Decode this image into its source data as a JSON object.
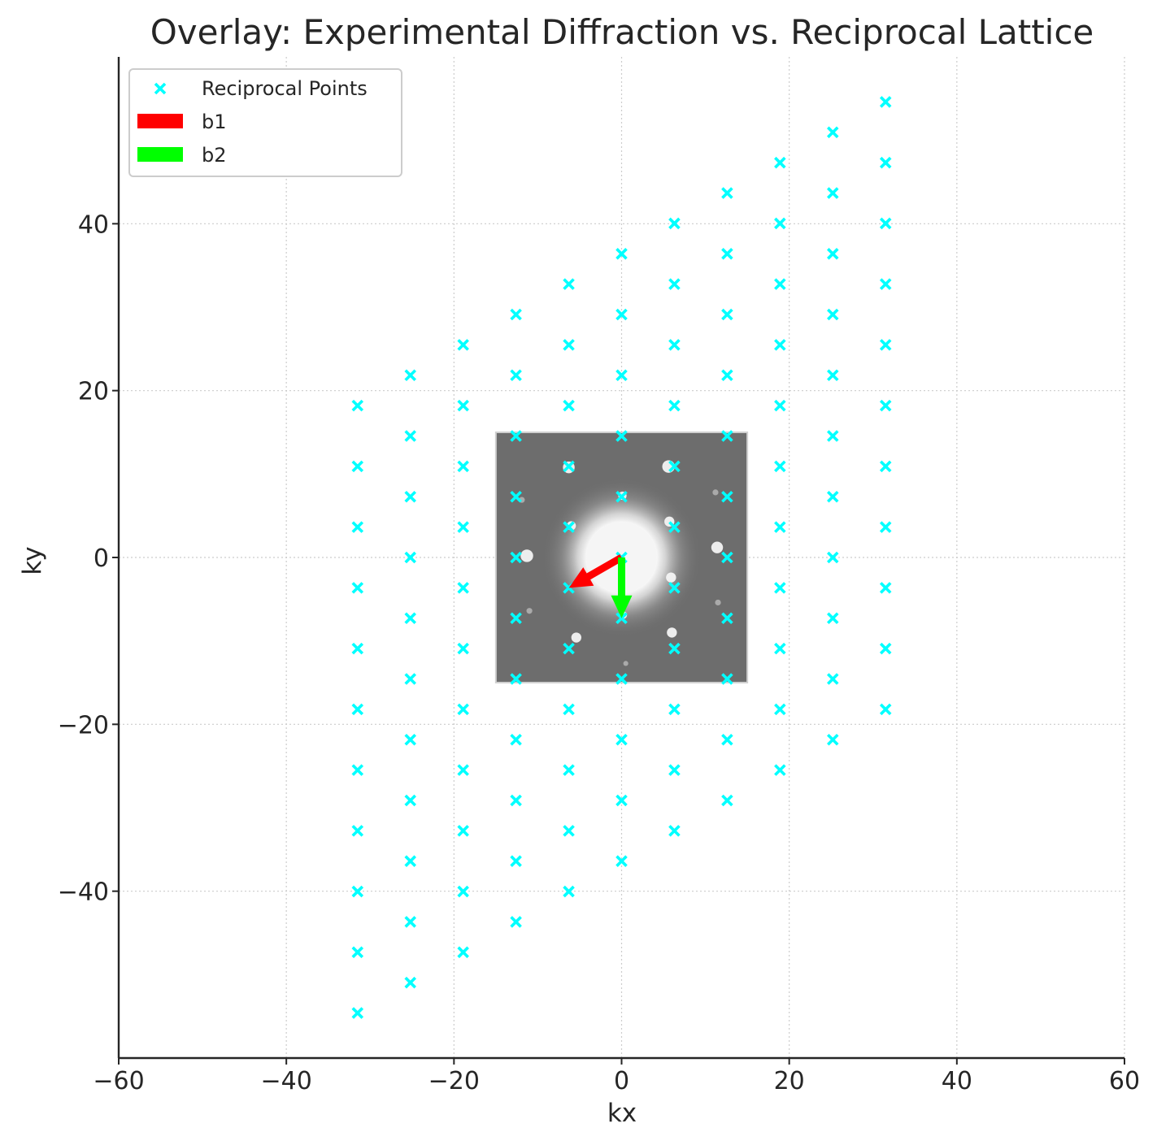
{
  "chart_data": {
    "type": "scatter",
    "title": "Overlay: Experimental Diffraction vs. Reciprocal Lattice",
    "xlabel": "kx",
    "ylabel": "ky",
    "xlim": [
      -60,
      60
    ],
    "ylim": [
      -60,
      60
    ],
    "xticks": [
      -60,
      -40,
      -20,
      0,
      20,
      40,
      60
    ],
    "yticks": [
      -40,
      -20,
      0,
      20,
      40
    ],
    "xtick_labels": [
      "−60",
      "−40",
      "−20",
      "0",
      "20",
      "40",
      "60"
    ],
    "ytick_labels": [
      "−40",
      "−20",
      "0",
      "20",
      "40"
    ],
    "grid": true,
    "legend_position": "top-left",
    "legend": [
      {
        "label": "Reciprocal Points",
        "color": "#00ffff",
        "marker": "x"
      },
      {
        "label": "b1",
        "color": "#ff0000",
        "marker": "arrow"
      },
      {
        "label": "b2",
        "color": "#00ff00",
        "marker": "arrow"
      }
    ],
    "image_extent": [
      -15,
      15,
      -15,
      15
    ],
    "lattice": {
      "name": "Reciprocal Points",
      "color": "#00ffff",
      "b1": [
        -6.3,
        -3.64
      ],
      "b2": [
        0,
        -7.28
      ],
      "h_range": [
        -5,
        5
      ],
      "k_range": [
        -5,
        5
      ]
    },
    "vectors": [
      {
        "name": "b1",
        "color": "#ff0000",
        "origin": [
          0,
          0
        ],
        "dx": -6.3,
        "dy": -3.64
      },
      {
        "name": "b2",
        "color": "#00ff00",
        "origin": [
          0,
          0
        ],
        "dx": 0,
        "dy": -7.28
      }
    ],
    "diffraction_spots": [
      [
        0,
        0,
        4.2
      ],
      [
        5.6,
        10.9,
        0.75
      ],
      [
        -6.3,
        10.8,
        0.7
      ],
      [
        -11.3,
        0.2,
        0.75
      ],
      [
        11.4,
        1.2,
        0.7
      ],
      [
        5.7,
        4.3,
        0.6
      ],
      [
        -6.0,
        3.8,
        0.55
      ],
      [
        0.1,
        7.4,
        0.5
      ],
      [
        5.9,
        -2.4,
        0.6
      ],
      [
        -5.4,
        -9.6,
        0.6
      ],
      [
        6.0,
        -9.0,
        0.6
      ],
      [
        0.2,
        -6.9,
        0.45
      ],
      [
        11.2,
        7.8,
        0.35
      ],
      [
        -11.9,
        6.9,
        0.35
      ],
      [
        -11.0,
        -6.4,
        0.35
      ],
      [
        11.5,
        -5.4,
        0.35
      ],
      [
        0.5,
        -12.7,
        0.3
      ]
    ]
  }
}
